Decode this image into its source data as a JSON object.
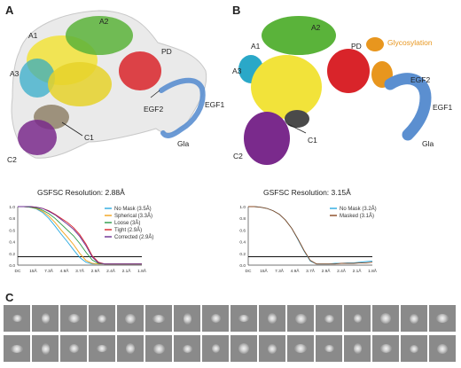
{
  "panels": {
    "a": "A",
    "b": "B",
    "c": "C"
  },
  "panel_a": {
    "domain_labels": {
      "a1": "A1",
      "a2": "A2",
      "a3": "A3",
      "pd": "PD",
      "egf2": "EGF2",
      "egf1": "EGF1",
      "c1": "C1",
      "c2": "C2",
      "gla": "Gla"
    }
  },
  "panel_b": {
    "domain_labels": {
      "a1": "A1",
      "a2": "A2",
      "a3": "A3",
      "pd": "PD",
      "egf2": "EGF2",
      "egf1": "EGF1",
      "c1": "C1",
      "c2": "C2",
      "gla": "Gla"
    },
    "glycosylation_label": "Glycosylation"
  },
  "colors": {
    "a1": "#f2e33a",
    "a2": "#5ab33a",
    "a3": "#2aa8c8",
    "pd": "#d9242a",
    "egf": "#5b8fd0",
    "c1": "#4a4a4a",
    "c2": "#7a2a8c",
    "glyco": "#e8961e"
  },
  "chart_data": [
    {
      "type": "line",
      "title": "GSFSC Resolution: 2.88Å",
      "x_tick_labels": [
        "DC",
        "15Å",
        "7.3Å",
        "4.9Å",
        "3.7Å",
        "2.9Å",
        "2.4Å",
        "2.1Å",
        "1.8Å"
      ],
      "y_tick_labels": [
        "0.0",
        "0.2",
        "0.4",
        "0.6",
        "0.8",
        "1.0"
      ],
      "xlim": [
        0,
        1
      ],
      "ylim": [
        0,
        1
      ],
      "threshold": 0.143,
      "x": [
        0.0,
        0.05,
        0.1,
        0.15,
        0.2,
        0.25,
        0.3,
        0.35,
        0.4,
        0.45,
        0.5,
        0.55,
        0.6,
        0.65,
        0.7,
        0.75,
        0.8,
        0.85,
        0.9,
        0.95,
        1.0
      ],
      "series": [
        {
          "name": "No Mask (3.5Å)",
          "color": "#29a9e0",
          "values": [
            1.0,
            1.0,
            0.99,
            0.96,
            0.9,
            0.8,
            0.67,
            0.53,
            0.4,
            0.26,
            0.13,
            0.05,
            0.02,
            0.02,
            0.02,
            0.02,
            0.02,
            0.02,
            0.02,
            0.02,
            0.02
          ]
        },
        {
          "name": "Spherical (3.3Å)",
          "color": "#f2a31a",
          "values": [
            1.0,
            1.0,
            0.99,
            0.97,
            0.92,
            0.84,
            0.73,
            0.6,
            0.48,
            0.35,
            0.2,
            0.08,
            0.03,
            0.02,
            0.02,
            0.02,
            0.02,
            0.02,
            0.02,
            0.02,
            0.02
          ]
        },
        {
          "name": "Loose (3Å)",
          "color": "#2a9a46",
          "values": [
            1.0,
            1.0,
            0.99,
            0.98,
            0.94,
            0.88,
            0.8,
            0.7,
            0.6,
            0.5,
            0.37,
            0.22,
            0.09,
            0.03,
            0.02,
            0.02,
            0.02,
            0.02,
            0.02,
            0.02,
            0.02
          ]
        },
        {
          "name": "Tight (2.9Å)",
          "color": "#d9242a",
          "values": [
            1.0,
            1.0,
            1.0,
            0.99,
            0.97,
            0.93,
            0.87,
            0.8,
            0.73,
            0.64,
            0.52,
            0.36,
            0.16,
            0.05,
            0.02,
            0.02,
            0.02,
            0.02,
            0.02,
            0.02,
            0.02
          ]
        },
        {
          "name": "Corrected (2.9Å)",
          "color": "#6a2c91",
          "values": [
            1.0,
            1.0,
            1.0,
            0.99,
            0.97,
            0.92,
            0.86,
            0.78,
            0.7,
            0.61,
            0.49,
            0.33,
            0.14,
            0.04,
            0.02,
            0.02,
            0.02,
            0.02,
            0.02,
            0.02,
            0.02
          ]
        }
      ]
    },
    {
      "type": "line",
      "title": "GSFSC Resolution: 3.15Å",
      "x_tick_labels": [
        "DC",
        "15Å",
        "7.3Å",
        "4.9Å",
        "3.7Å",
        "2.9Å",
        "2.4Å",
        "2.1Å",
        "1.8Å"
      ],
      "y_tick_labels": [
        "0.0",
        "0.2",
        "0.4",
        "0.6",
        "0.8",
        "1.0"
      ],
      "xlim": [
        0,
        1
      ],
      "ylim": [
        0,
        1
      ],
      "threshold": 0.143,
      "x": [
        0.0,
        0.05,
        0.1,
        0.15,
        0.2,
        0.25,
        0.3,
        0.35,
        0.4,
        0.45,
        0.5,
        0.55,
        0.6,
        0.65,
        0.7,
        0.75,
        0.8,
        0.85,
        0.9,
        0.95,
        1.0
      ],
      "series": [
        {
          "name": "No Mask (3.2Å)",
          "color": "#29a9e0",
          "values": [
            1.0,
            1.0,
            0.99,
            0.97,
            0.93,
            0.87,
            0.77,
            0.63,
            0.44,
            0.24,
            0.07,
            0.02,
            0.02,
            0.02,
            0.03,
            0.03,
            0.04,
            0.04,
            0.05,
            0.06,
            0.07
          ]
        },
        {
          "name": "Masked (3.1Å)",
          "color": "#8a4a22",
          "values": [
            1.0,
            1.0,
            0.99,
            0.97,
            0.93,
            0.87,
            0.77,
            0.63,
            0.45,
            0.25,
            0.08,
            0.02,
            0.02,
            0.02,
            0.02,
            0.03,
            0.03,
            0.03,
            0.04,
            0.04,
            0.05
          ]
        }
      ]
    }
  ]
}
